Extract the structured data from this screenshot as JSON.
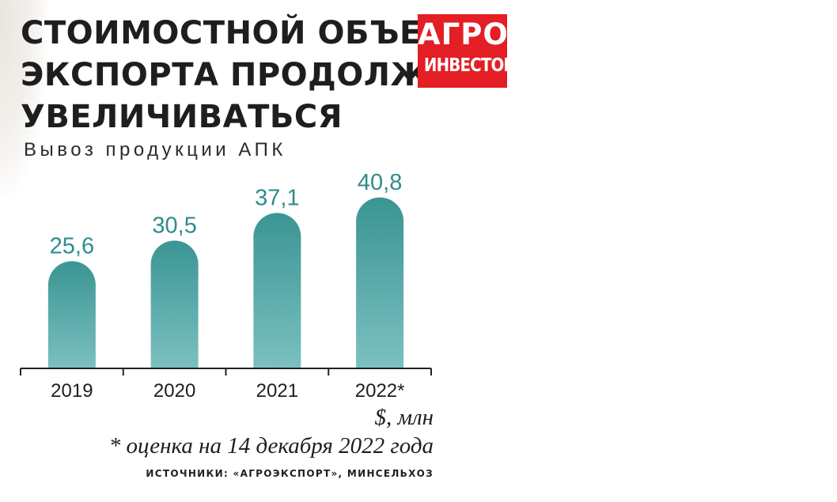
{
  "header": {
    "title_lines": [
      "СТОИМОСТНОЙ ОБЪЕМ",
      "ЭКСПОРТА ПРОДОЛЖАЕТ",
      "УВЕЛИЧИВАТЬСЯ"
    ],
    "subtitle": "Вывоз продукции АПК"
  },
  "logo": {
    "line1": "АГРО",
    "line2": "ИНВЕСТОР"
  },
  "colors": {
    "bar_top": "#3a9593",
    "bar_bottom": "#7cc0c1",
    "value_label": "#2e8d8b",
    "axis": "#222222",
    "logo_bg": "#e31e24"
  },
  "chart_data": {
    "type": "bar",
    "categories": [
      "2019",
      "2020",
      "2021",
      "2022*"
    ],
    "values": [
      25.6,
      30.5,
      37.1,
      40.8
    ],
    "value_labels": [
      "25,6",
      "30,5",
      "37,1",
      "40,8"
    ],
    "unit": "$, млн",
    "ylim": [
      0,
      45
    ],
    "grid": false,
    "legend": "none"
  },
  "footer": {
    "unit": "$, млн",
    "footnote": "* оценка на 14 декабря 2022 года",
    "source": "ИСТОЧНИКИ: «АГРОЭКСПОРТ», МИНСЕЛЬХОЗ"
  }
}
